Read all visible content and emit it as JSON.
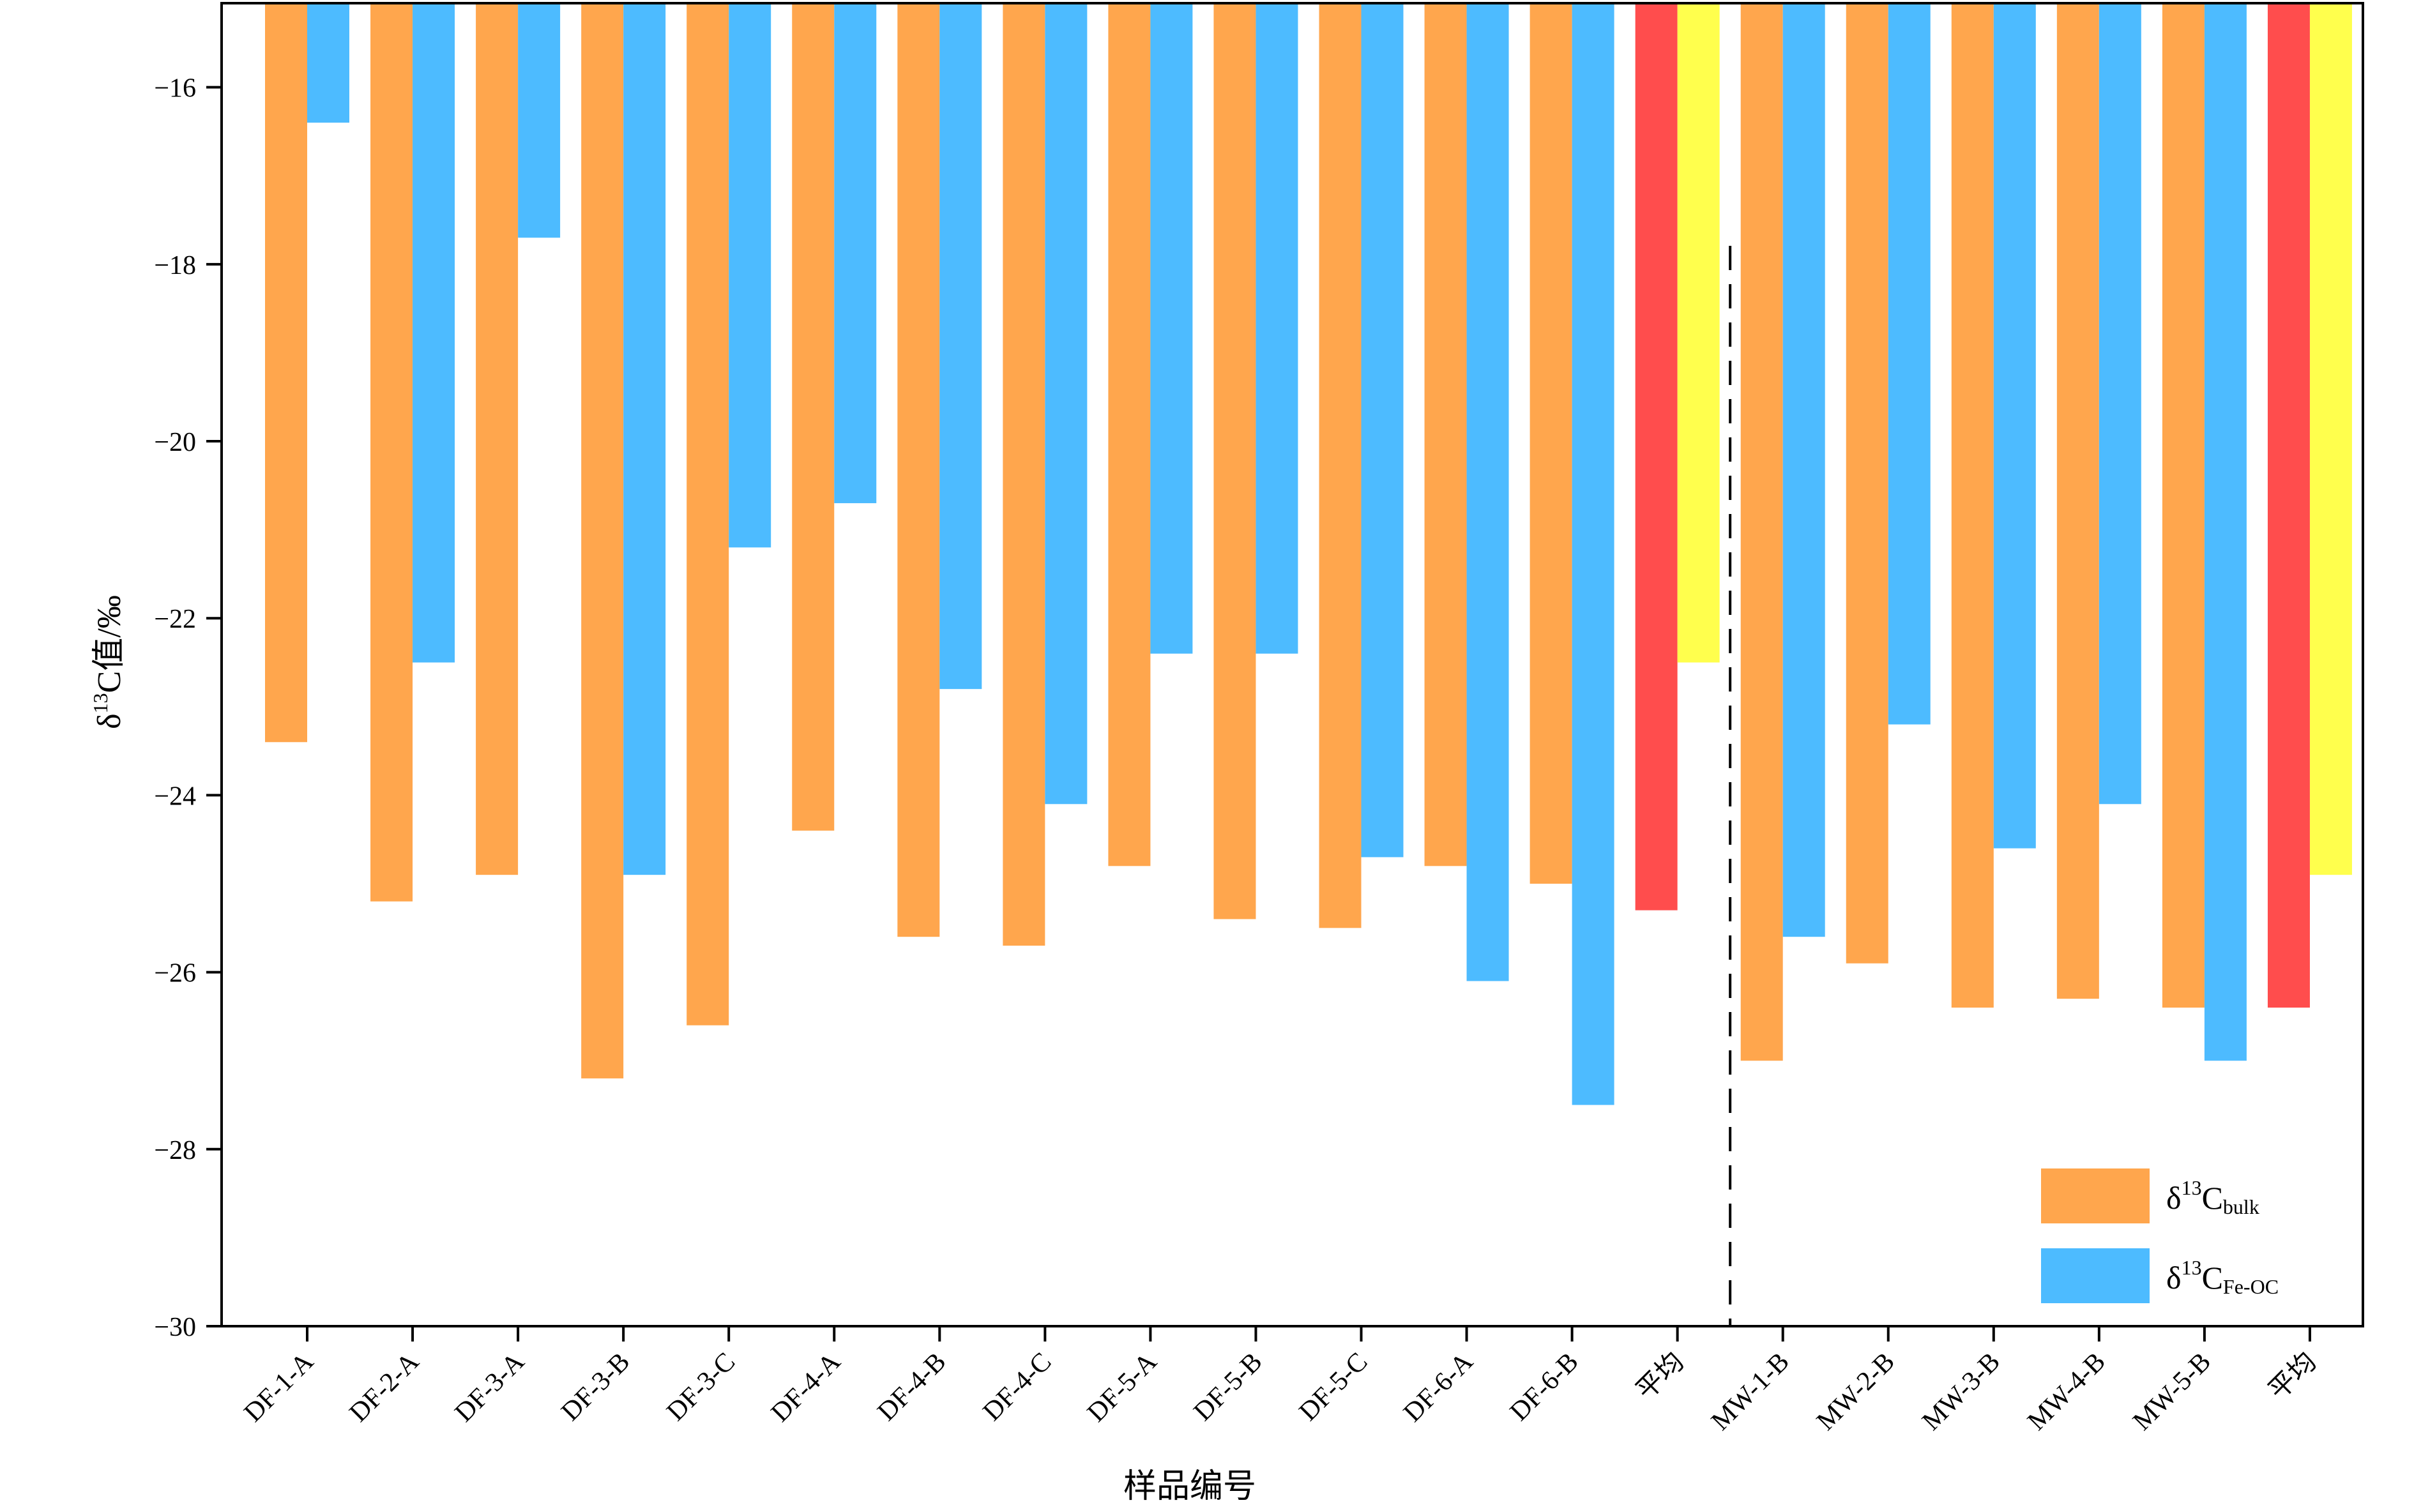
{
  "chart_data": {
    "type": "bar",
    "title": "",
    "xlabel": "样品编号",
    "ylabel": {
      "prefix": "δ",
      "sup": "13",
      "rest": "C值/‰"
    },
    "categories": [
      "DF-1-A",
      "DF-2-A",
      "DF-3-A",
      "DF-3-B",
      "DF-3-C",
      "DF-4-A",
      "DF-4-B",
      "DF-4-C",
      "DF-5-A",
      "DF-5-B",
      "DF-5-C",
      "DF-6-A",
      "DF-6-B",
      "平均",
      "MW-1-B",
      "MW-2-B",
      "MW-3-B",
      "MW-4-B",
      "MW-5-B",
      "平均"
    ],
    "series": [
      {
        "name": {
          "prefix": "δ",
          "sup": "13",
          "base": "C",
          "sub": "bulk"
        },
        "color": "#FFA64D",
        "values": [
          -23.4,
          -25.2,
          -24.9,
          -27.2,
          -26.6,
          -24.4,
          -25.6,
          -25.7,
          -24.8,
          -25.4,
          -25.5,
          -24.8,
          -25.0,
          -25.3,
          -27.0,
          -25.9,
          -26.4,
          -26.3,
          -26.4,
          -26.4
        ]
      },
      {
        "name": {
          "prefix": "δ",
          "sup": "13",
          "base": "C",
          "sub": "Fe-OC"
        },
        "color": "#4DBBFF",
        "values": [
          -16.4,
          -22.5,
          -17.7,
          -24.9,
          -21.2,
          -20.7,
          -22.8,
          -24.1,
          -22.4,
          -22.4,
          -24.7,
          -26.1,
          -27.5,
          -22.5,
          -25.6,
          -23.2,
          -24.6,
          -24.1,
          -27.0,
          -24.9
        ]
      }
    ],
    "average_colors": {
      "bulk": "#FF4D4D",
      "fe_oc": "#FFFF4D"
    },
    "yticks": [
      -16,
      -18,
      -20,
      -22,
      -24,
      -26,
      -28,
      -30
    ],
    "ylim": [
      -30,
      -15.05
    ],
    "y_reversed": true,
    "group_divider_after_index": 13,
    "grid": false,
    "legend_position": "bottom-right"
  }
}
